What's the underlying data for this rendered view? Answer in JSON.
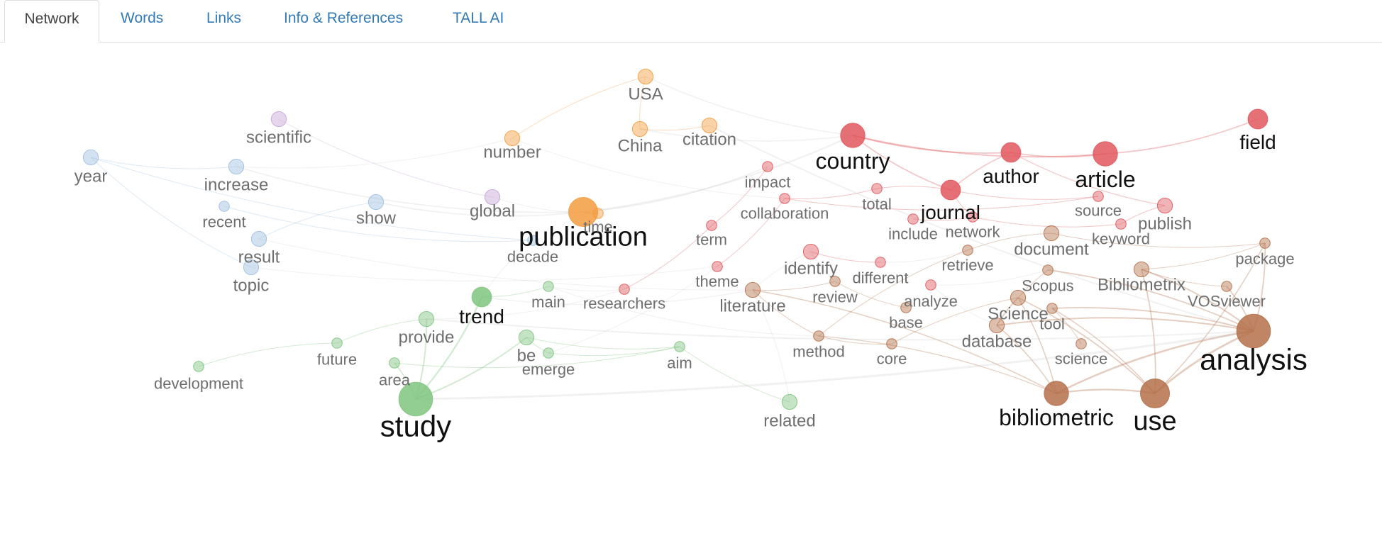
{
  "tabs": [
    {
      "id": "network",
      "label": "Network",
      "active": true
    },
    {
      "id": "words",
      "label": "Words"
    },
    {
      "id": "links",
      "label": "Links"
    },
    {
      "id": "info",
      "label": "Info & References"
    },
    {
      "id": "tall",
      "label": "TALL AI"
    }
  ],
  "colors": {
    "blue": "#9dbfe0",
    "purple": "#c7a3d6",
    "orange": "#f39c3f",
    "green": "#7fc47f",
    "red": "#e0585e",
    "brown": "#b4704a",
    "active_tab_text": "#444444",
    "tab_text": "#337ab7"
  },
  "network": {
    "nodes": [
      {
        "id": "USA",
        "label": "USA",
        "group": "orange",
        "weight": 2
      },
      {
        "id": "China",
        "label": "China",
        "group": "orange",
        "weight": 2
      },
      {
        "id": "citation",
        "label": "citation",
        "group": "orange",
        "weight": 2
      },
      {
        "id": "number",
        "label": "number",
        "group": "orange",
        "weight": 2
      },
      {
        "id": "publication",
        "label": "publication",
        "group": "orange",
        "weight": 5
      },
      {
        "id": "time",
        "label": "time",
        "group": "orange",
        "weight": 1
      },
      {
        "id": "scientific",
        "label": "scientific",
        "group": "purple",
        "weight": 2
      },
      {
        "id": "global",
        "label": "global",
        "group": "purple",
        "weight": 2
      },
      {
        "id": "year",
        "label": "year",
        "group": "blue",
        "weight": 2
      },
      {
        "id": "increase",
        "label": "increase",
        "group": "blue",
        "weight": 2
      },
      {
        "id": "recent",
        "label": "recent",
        "group": "blue",
        "weight": 1
      },
      {
        "id": "show",
        "label": "show",
        "group": "blue",
        "weight": 2
      },
      {
        "id": "result",
        "label": "result",
        "group": "blue",
        "weight": 2
      },
      {
        "id": "topic",
        "label": "topic",
        "group": "blue",
        "weight": 2
      },
      {
        "id": "decade",
        "label": "decade",
        "group": "blue",
        "weight": 1
      },
      {
        "id": "trend",
        "label": "trend",
        "group": "green",
        "weight": 3
      },
      {
        "id": "main",
        "label": "main",
        "group": "green",
        "weight": 1
      },
      {
        "id": "provide",
        "label": "provide",
        "group": "green",
        "weight": 2
      },
      {
        "id": "future",
        "label": "future",
        "group": "green",
        "weight": 1
      },
      {
        "id": "development",
        "label": "development",
        "group": "green",
        "weight": 1
      },
      {
        "id": "area",
        "label": "area",
        "group": "green",
        "weight": 1
      },
      {
        "id": "be",
        "label": "be",
        "group": "green",
        "weight": 2
      },
      {
        "id": "emerge",
        "label": "emerge",
        "group": "green",
        "weight": 1
      },
      {
        "id": "aim",
        "label": "aim",
        "group": "green",
        "weight": 1
      },
      {
        "id": "study",
        "label": "study",
        "group": "green",
        "weight": 6
      },
      {
        "id": "related",
        "label": "related",
        "group": "green",
        "weight": 2
      },
      {
        "id": "country",
        "label": "country",
        "group": "red",
        "weight": 4
      },
      {
        "id": "author",
        "label": "author",
        "group": "red",
        "weight": 3
      },
      {
        "id": "article",
        "label": "article",
        "group": "red",
        "weight": 4
      },
      {
        "id": "field",
        "label": "field",
        "group": "red",
        "weight": 3
      },
      {
        "id": "impact",
        "label": "impact",
        "group": "red",
        "weight": 1
      },
      {
        "id": "collaboration",
        "label": "collaboration",
        "group": "red",
        "weight": 1
      },
      {
        "id": "total",
        "label": "total",
        "group": "red",
        "weight": 1
      },
      {
        "id": "journal",
        "label": "journal",
        "group": "red",
        "weight": 3
      },
      {
        "id": "source",
        "label": "source",
        "group": "red",
        "weight": 1
      },
      {
        "id": "publish",
        "label": "publish",
        "group": "red",
        "weight": 2
      },
      {
        "id": "include",
        "label": "include",
        "group": "red",
        "weight": 1
      },
      {
        "id": "network",
        "label": "network",
        "group": "red",
        "weight": 1
      },
      {
        "id": "keyword",
        "label": "keyword",
        "group": "red",
        "weight": 1
      },
      {
        "id": "term",
        "label": "term",
        "group": "red",
        "weight": 1
      },
      {
        "id": "identify",
        "label": "identify",
        "group": "red",
        "weight": 2
      },
      {
        "id": "different",
        "label": "different",
        "group": "red",
        "weight": 1
      },
      {
        "id": "theme",
        "label": "theme",
        "group": "red",
        "weight": 1
      },
      {
        "id": "researchers",
        "label": "researchers",
        "group": "red",
        "weight": 1
      },
      {
        "id": "analyze",
        "label": "analyze",
        "group": "red",
        "weight": 1
      },
      {
        "id": "document",
        "label": "document",
        "group": "brown",
        "weight": 2
      },
      {
        "id": "package",
        "label": "package",
        "group": "brown",
        "weight": 1
      },
      {
        "id": "retrieve",
        "label": "retrieve",
        "group": "brown",
        "weight": 1
      },
      {
        "id": "Scopus",
        "label": "Scopus",
        "group": "brown",
        "weight": 1
      },
      {
        "id": "Bibliometrix",
        "label": "Bibliometrix",
        "group": "brown",
        "weight": 2
      },
      {
        "id": "VOSviewer",
        "label": "VOSviewer",
        "group": "brown",
        "weight": 1
      },
      {
        "id": "review",
        "label": "review",
        "group": "brown",
        "weight": 1
      },
      {
        "id": "literature",
        "label": "literature",
        "group": "brown",
        "weight": 2
      },
      {
        "id": "Science",
        "label": "Science",
        "group": "brown",
        "weight": 2
      },
      {
        "id": "base",
        "label": "base",
        "group": "brown",
        "weight": 1
      },
      {
        "id": "tool",
        "label": "tool",
        "group": "brown",
        "weight": 1
      },
      {
        "id": "database",
        "label": "database",
        "group": "brown",
        "weight": 2
      },
      {
        "id": "method",
        "label": "method",
        "group": "brown",
        "weight": 1
      },
      {
        "id": "core",
        "label": "core",
        "group": "brown",
        "weight": 1
      },
      {
        "id": "science",
        "label": "science",
        "group": "brown",
        "weight": 1
      },
      {
        "id": "analysis",
        "label": "analysis",
        "group": "brown",
        "weight": 6
      },
      {
        "id": "bibliometric",
        "label": "bibliometric",
        "group": "brown",
        "weight": 4
      },
      {
        "id": "use",
        "label": "use",
        "group": "brown",
        "weight": 5
      }
    ],
    "edges": [
      [
        "USA",
        "China"
      ],
      [
        "USA",
        "country"
      ],
      [
        "USA",
        "number"
      ],
      [
        "China",
        "citation"
      ],
      [
        "China",
        "country"
      ],
      [
        "year",
        "decade"
      ],
      [
        "year",
        "increase"
      ],
      [
        "increase",
        "publication"
      ],
      [
        "increase",
        "number"
      ],
      [
        "recent",
        "decade"
      ],
      [
        "show",
        "result"
      ],
      [
        "publication",
        "country"
      ],
      [
        "publication",
        "time"
      ],
      [
        "publication",
        "impact"
      ],
      [
        "country",
        "author"
      ],
      [
        "country",
        "journal"
      ],
      [
        "country",
        "article"
      ],
      [
        "author",
        "journal"
      ],
      [
        "author",
        "article"
      ],
      [
        "article",
        "field"
      ],
      [
        "journal",
        "source"
      ],
      [
        "journal",
        "network"
      ],
      [
        "journal",
        "total"
      ],
      [
        "collaboration",
        "source"
      ],
      [
        "collaboration",
        "total"
      ],
      [
        "include",
        "network"
      ],
      [
        "network",
        "keyword"
      ],
      [
        "publish",
        "keyword"
      ],
      [
        "author",
        "publish"
      ],
      [
        "term",
        "impact"
      ],
      [
        "theme",
        "collaboration"
      ],
      [
        "researchers",
        "term"
      ],
      [
        "identify",
        "different"
      ],
      [
        "analysis",
        "use"
      ],
      [
        "analysis",
        "bibliometric"
      ],
      [
        "analysis",
        "Bibliometrix"
      ],
      [
        "analysis",
        "package"
      ],
      [
        "analysis",
        "VOSviewer"
      ],
      [
        "analysis",
        "tool"
      ],
      [
        "analysis",
        "database"
      ],
      [
        "analysis",
        "Scopus"
      ],
      [
        "use",
        "bibliometric"
      ],
      [
        "use",
        "Bibliometrix"
      ],
      [
        "use",
        "tool"
      ],
      [
        "use",
        "package"
      ],
      [
        "use",
        "Science"
      ],
      [
        "bibliometric",
        "database"
      ],
      [
        "bibliometric",
        "Science"
      ],
      [
        "bibliometric",
        "method"
      ],
      [
        "bibliometric",
        "literature"
      ],
      [
        "Science",
        "database"
      ],
      [
        "Science",
        "core"
      ],
      [
        "Scopus",
        "database"
      ],
      [
        "document",
        "retrieve"
      ],
      [
        "retrieve",
        "method"
      ],
      [
        "literature",
        "review"
      ],
      [
        "literature",
        "method"
      ],
      [
        "review",
        "base"
      ],
      [
        "method",
        "core"
      ],
      [
        "science",
        "tool"
      ],
      [
        "document",
        "package"
      ],
      [
        "Bibliometrix",
        "VOSviewer"
      ],
      [
        "Bibliometrix",
        "package"
      ],
      [
        "analyze",
        "database"
      ],
      [
        "analyze",
        "Scopus"
      ],
      [
        "study",
        "trend"
      ],
      [
        "study",
        "area"
      ],
      [
        "study",
        "provide"
      ],
      [
        "study",
        "be"
      ],
      [
        "trend",
        "main"
      ],
      [
        "provide",
        "future"
      ],
      [
        "future",
        "development"
      ],
      [
        "be",
        "aim"
      ],
      [
        "emerge",
        "aim"
      ],
      [
        "be",
        "emerge"
      ],
      [
        "main",
        "researchers"
      ],
      [
        "provide",
        "researchers"
      ],
      [
        "aim",
        "related"
      ],
      [
        "scientific",
        "global"
      ],
      [
        "global",
        "time"
      ],
      [
        "topic",
        "theme"
      ],
      [
        "result",
        "literature"
      ],
      [
        "study",
        "analysis"
      ],
      [
        "trend",
        "literature"
      ],
      [
        "provide",
        "analysis"
      ],
      [
        "show",
        "publication"
      ],
      [
        "identify",
        "literature"
      ],
      [
        "identify",
        "review"
      ],
      [
        "different",
        "retrieve"
      ],
      [
        "emerge",
        "theme"
      ],
      [
        "main",
        "method"
      ],
      [
        "decade",
        "trend"
      ],
      [
        "number",
        "collaboration"
      ],
      [
        "citation",
        "analysis"
      ],
      [
        "related",
        "literature"
      ],
      [
        "year",
        "topic"
      ],
      [
        "area",
        "aim"
      ]
    ]
  }
}
